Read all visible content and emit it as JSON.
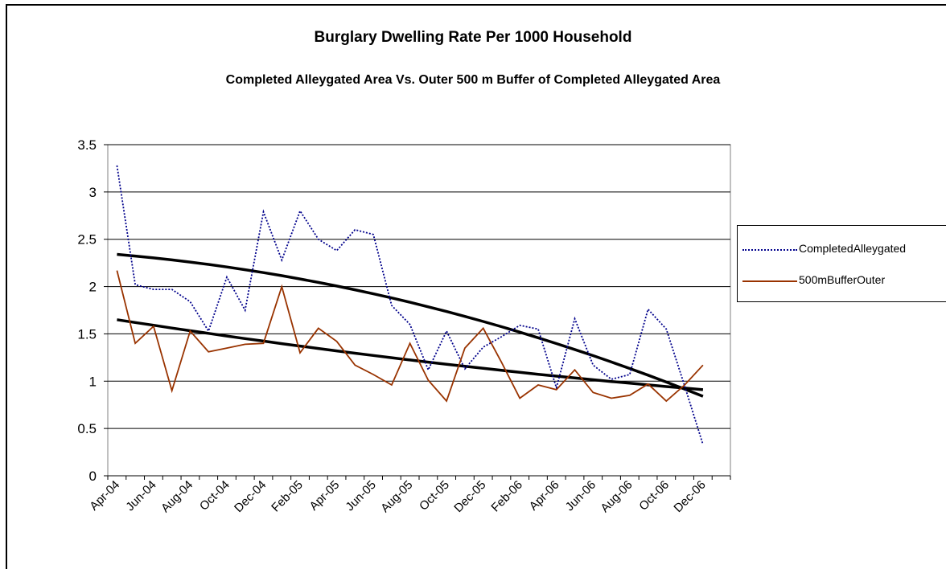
{
  "chart_data": {
    "type": "line",
    "title": "Burglary Dwelling Rate Per 1000 Household",
    "subtitle": "Completed Alleygated Area Vs. Outer 500 m Buffer of Completed Alleygated Area",
    "xlabel": "",
    "ylabel": "",
    "ylim": [
      0,
      3.5
    ],
    "yticks": [
      "0",
      "0.5",
      "1",
      "1.5",
      "2",
      "2.5",
      "3",
      "3.5"
    ],
    "x": [
      "Apr-04",
      "May-04",
      "Jun-04",
      "Jul-04",
      "Aug-04",
      "Sep-04",
      "Oct-04",
      "Nov-04",
      "Dec-04",
      "Jan-05",
      "Feb-05",
      "Mar-05",
      "Apr-05",
      "May-05",
      "Jun-05",
      "Jul-05",
      "Aug-05",
      "Sep-05",
      "Oct-05",
      "Nov-05",
      "Dec-05",
      "Jan-06",
      "Feb-06",
      "Mar-06",
      "Apr-06",
      "May-06",
      "Jun-06",
      "Jul-06",
      "Aug-06",
      "Sep-06",
      "Oct-06",
      "Nov-06",
      "Dec-06",
      "Jan-07"
    ],
    "xtick_labels": [
      "Apr-04",
      "Jun-04",
      "Aug-04",
      "Oct-04",
      "Dec-04",
      "Feb-05",
      "Apr-05",
      "Jun-05",
      "Aug-05",
      "Oct-05",
      "Dec-05",
      "Feb-06",
      "Apr-06",
      "Jun-06",
      "Aug-06",
      "Oct-06",
      "Dec-06"
    ],
    "series": [
      {
        "name": "CompletedAlleygated",
        "color": "#00008b",
        "style": "dotted",
        "values": [
          3.28,
          2.02,
          1.97,
          1.97,
          1.84,
          1.53,
          2.1,
          1.75,
          2.79,
          2.28,
          2.8,
          2.5,
          2.38,
          2.6,
          2.55,
          1.8,
          1.6,
          1.12,
          1.53,
          1.13,
          1.36,
          1.47,
          1.59,
          1.55,
          0.93,
          1.66,
          1.17,
          1.02,
          1.07,
          1.76,
          1.55,
          0.95,
          0.33,
          0.33
        ]
      },
      {
        "name": "500mBufferOuter",
        "color": "#993300",
        "style": "solid",
        "values": [
          2.17,
          1.4,
          1.58,
          0.9,
          1.53,
          1.31,
          1.35,
          1.39,
          1.4,
          2.0,
          1.3,
          1.56,
          1.42,
          1.17,
          1.07,
          0.96,
          1.4,
          1.01,
          0.79,
          1.35,
          1.56,
          1.2,
          0.82,
          0.96,
          0.91,
          1.12,
          0.88,
          0.82,
          0.85,
          0.97,
          0.79,
          0.96,
          1.17,
          1.17
        ]
      }
    ],
    "trendlines": [
      {
        "color": "#000000",
        "start": 2.34,
        "end": 0.84
      },
      {
        "color": "#000000",
        "start": 1.65,
        "end": 0.91
      }
    ],
    "grid": true,
    "legend": "right"
  },
  "legend": {
    "items": [
      "CompletedAlleygated",
      "500mBufferOuter"
    ]
  }
}
